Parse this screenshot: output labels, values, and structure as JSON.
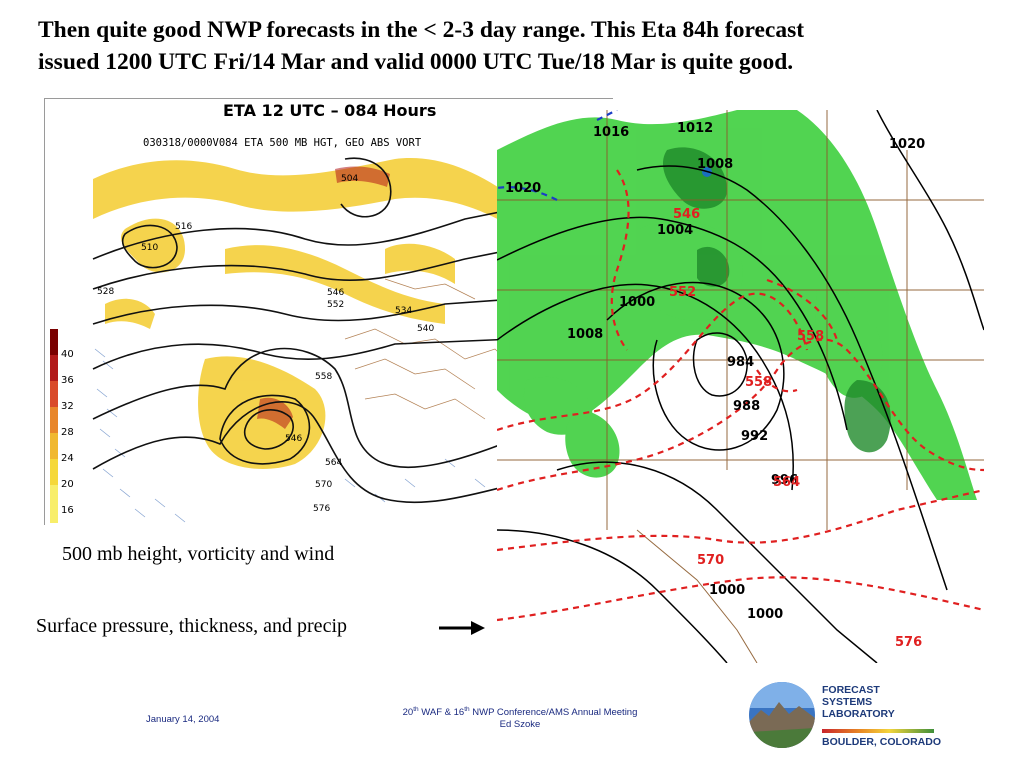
{
  "title": {
    "line1": "Then quite good NWP forecasts in the < 2-3 day range.  This Eta 84h forecast",
    "line2": "issued 1200 UTC Fri/14 Mar and valid 0000 UTC Tue/18 Mar is quite good."
  },
  "left_map": {
    "title": "ETA 12 UTC – 084 Hours",
    "subtitle": "030318/0000V084 ETA 500 MB HGT, GEO ABS VORT",
    "colorbar_labels": [
      "40",
      "36",
      "32",
      "28",
      "24",
      "20",
      "16"
    ],
    "colorbar_colors": [
      "#7a0000",
      "#b21a1a",
      "#d94a2a",
      "#e8862a",
      "#f0b830",
      "#f5d83a",
      "#f8ee6a"
    ],
    "contour_labels": [
      "504",
      "516",
      "528",
      "546",
      "552",
      "534",
      "540",
      "558",
      "546",
      "564",
      "570",
      "576",
      "510"
    ]
  },
  "right_map": {
    "isobar_labels": [
      "1016",
      "1012",
      "1020",
      "1008",
      "1004",
      "1000",
      "1008",
      "984",
      "988",
      "992",
      "996",
      "1000",
      "1000",
      "1020"
    ],
    "thickness_labels": [
      "546",
      "552",
      "558",
      "558",
      "564",
      "570",
      "576"
    ]
  },
  "captions": {
    "upper": "500 mb height, vorticity and wind",
    "lower": "Surface pressure, thickness, and precip"
  },
  "footer": {
    "date": "January 14, 2004",
    "conf_line1_a": "20",
    "conf_line1_sup1": "th",
    "conf_line1_b": " WAF & 16",
    "conf_line1_sup2": "th",
    "conf_line1_c": " NWP  Conference/AMS Annual Meeting",
    "conf_line2": "Ed Szoke"
  },
  "logo": {
    "line1": "FORECAST",
    "line2": "SYSTEMS",
    "line3": "LABORATORY",
    "city": "BOULDER, COLORADO"
  }
}
